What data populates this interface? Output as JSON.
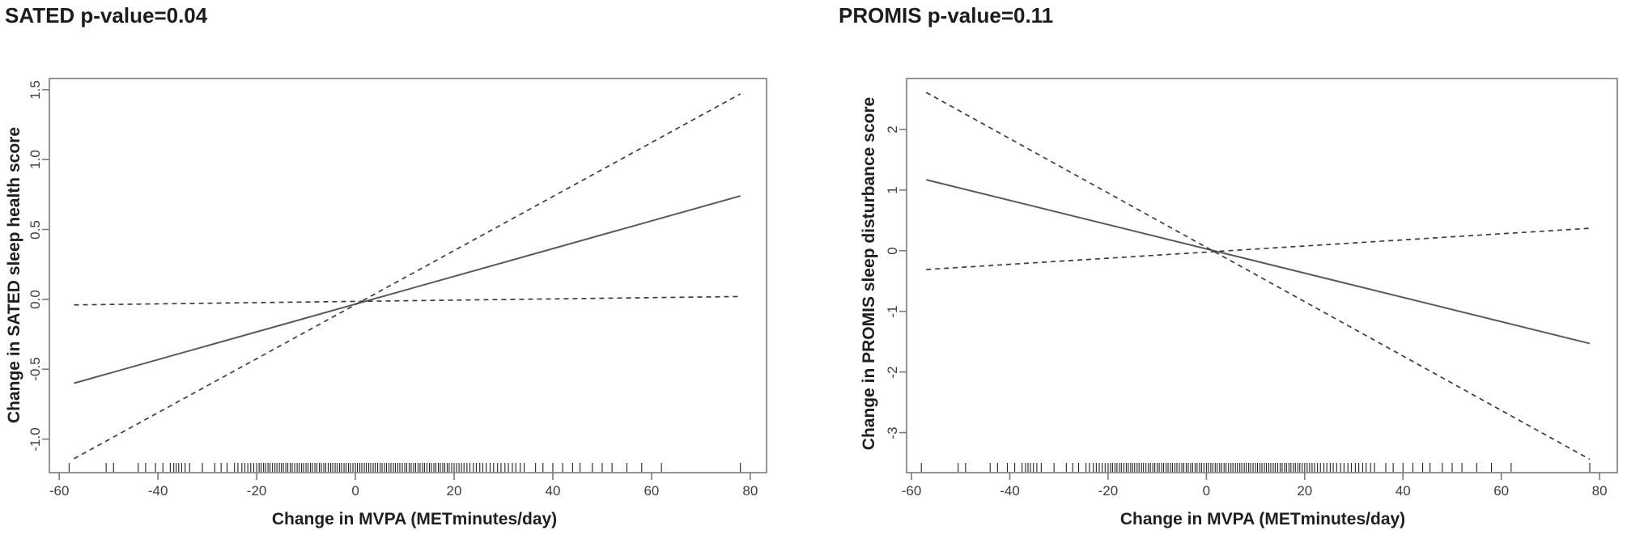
{
  "chart_data": [
    {
      "type": "line",
      "title": "SATED p-value=0.04",
      "p_value": "0.04",
      "xlabel": "Change in MVPA (METminutes/day)",
      "ylabel": "Change in SATED sleep health score",
      "xlim": [
        -62,
        83.3
      ],
      "ylim": [
        -1.24,
        1.58
      ],
      "x_ticks": [
        -60,
        -40,
        -20,
        0,
        20,
        40,
        60,
        80
      ],
      "x_tick_labels": [
        "-60",
        "-40",
        "-20",
        "0",
        "20",
        "40",
        "60",
        "80"
      ],
      "y_ticks": [
        1.5,
        1.0,
        0.5,
        0.0,
        -0.5,
        -1.0
      ],
      "y_tick_labels": [
        "1.5",
        "1.0",
        "0.5",
        "0.0",
        "-0.5",
        "-1.0"
      ],
      "grid": false,
      "legend": "none",
      "series": [
        {
          "name": "estimate",
          "style": "solid",
          "x": [
            -57,
            78
          ],
          "y": [
            -0.6,
            0.74
          ]
        },
        {
          "name": "ci-bound-steep",
          "style": "dashed",
          "x": [
            -57,
            78
          ],
          "y": [
            -1.14,
            1.47
          ]
        },
        {
          "name": "ci-bound-flat",
          "style": "dashed",
          "x": [
            -57,
            78
          ],
          "y": [
            -0.04,
            0.02
          ]
        }
      ]
    },
    {
      "type": "line",
      "title": "PROMIS p-value=0.11",
      "p_value": "0.11",
      "xlabel": "Change in MVPA (METminutes/day)",
      "ylabel": "Change in PROMIS sleep disturbance score",
      "xlim": [
        -61,
        83.6
      ],
      "ylim": [
        -3.66,
        2.84
      ],
      "x_ticks": [
        -60,
        -40,
        -20,
        0,
        20,
        40,
        60,
        80
      ],
      "x_tick_labels": [
        "-60",
        "-40",
        "-20",
        "0",
        "20",
        "40",
        "60",
        "80"
      ],
      "y_ticks": [
        2,
        1,
        0,
        -1,
        -2,
        -3
      ],
      "y_tick_labels": [
        "2",
        "1",
        "0",
        "-1",
        "-2",
        "-3"
      ],
      "grid": false,
      "legend": "none",
      "series": [
        {
          "name": "estimate",
          "style": "solid",
          "x": [
            -57,
            78
          ],
          "y": [
            1.17,
            -1.53
          ]
        },
        {
          "name": "ci-bound-steep",
          "style": "dashed",
          "x": [
            -57,
            78
          ],
          "y": [
            2.61,
            -3.44
          ]
        },
        {
          "name": "ci-bound-flat",
          "style": "dashed",
          "x": [
            -57,
            78
          ],
          "y": [
            -0.31,
            0.37
          ]
        }
      ]
    }
  ],
  "rug_x": [
    -58,
    -50.5,
    -49,
    -44,
    -42.5,
    -40.5,
    -39,
    -37.5,
    -36.8,
    -36.3,
    -35.8,
    -35.2,
    -34.5,
    -33.6,
    -31,
    -28.5,
    -27.2,
    -26,
    -24.5,
    -23.8,
    -23,
    -22.4,
    -21.8,
    -21.2,
    -20.6,
    -20,
    -19.5,
    -19.1,
    -18.6,
    -18.2,
    -17.7,
    -17.3,
    -16.8,
    -16.3,
    -15.9,
    -15.4,
    -15,
    -14.6,
    -14.1,
    -13.7,
    -13.2,
    -12.8,
    -12.3,
    -11.8,
    -11.4,
    -10.9,
    -10.5,
    -10,
    -9.6,
    -9.1,
    -8.7,
    -8.2,
    -7.8,
    -7.3,
    -6.9,
    -6.4,
    -6,
    -5.5,
    -5,
    -4.6,
    -4.1,
    -3.7,
    -3.2,
    -2.8,
    -2.3,
    -1.9,
    -1.4,
    -1,
    -0.5,
    0,
    0.4,
    0.9,
    1.3,
    1.8,
    2.2,
    2.7,
    3.1,
    3.6,
    4,
    4.5,
    5,
    5.4,
    5.9,
    6.3,
    6.8,
    7.2,
    7.7,
    8.1,
    8.6,
    9,
    9.5,
    10,
    10.4,
    10.9,
    11.3,
    11.8,
    12.2,
    12.7,
    13.1,
    13.6,
    14,
    14.5,
    15,
    15.4,
    15.9,
    16.3,
    16.8,
    17.2,
    17.7,
    18.1,
    18.6,
    19,
    19.5,
    20,
    20.5,
    21,
    21.5,
    22,
    22.6,
    23.2,
    23.9,
    24.5,
    25.2,
    25.8,
    26.5,
    27.3,
    28,
    28.8,
    29.5,
    30.3,
    31,
    31.8,
    32.5,
    33.4,
    34.2,
    36.5,
    38,
    40,
    42,
    44,
    45.5,
    48,
    50,
    52,
    55,
    58,
    62,
    78
  ],
  "colors": {
    "line_solid": "#5a5a5a",
    "line_dashed": "#3c3c3c",
    "box": "#7a7a7a",
    "rug": "#222222",
    "text": "#1c1c1c"
  }
}
